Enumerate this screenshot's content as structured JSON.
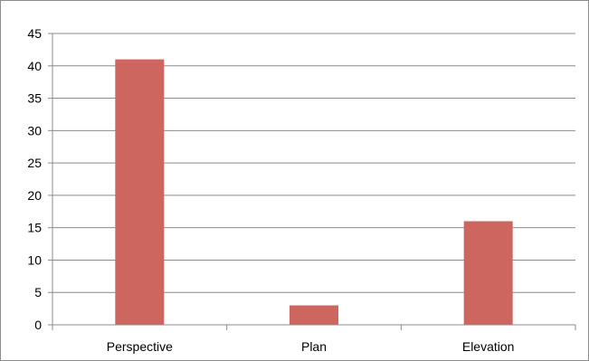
{
  "chart_data": {
    "type": "bar",
    "categories": [
      "Perspective",
      "Plan",
      "Elevation"
    ],
    "values": [
      41,
      3,
      16
    ],
    "ylim": [
      0,
      45
    ],
    "yticks": [
      0,
      5,
      10,
      15,
      20,
      25,
      30,
      35,
      40,
      45
    ],
    "grid": true,
    "legend": "none",
    "bar_color": "#cd665e",
    "grid_color": "#8c8c8c"
  }
}
